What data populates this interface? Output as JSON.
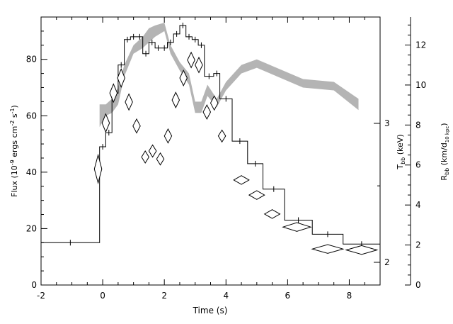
{
  "chart_data": {
    "type": "line",
    "xlabel": "Time (s)",
    "xlim": [
      -2,
      9
    ],
    "x_ticks": [
      "-2",
      "0",
      "2",
      "4",
      "6",
      "8"
    ],
    "left_axis": {
      "label": "Flux (10",
      "label_sup1": "-9",
      "label_mid": " ergs cm",
      "label_sup2": "-2",
      "label_mid2": " s",
      "label_sup3": "-1",
      "label_end": ")",
      "ylim": [
        0,
        95
      ],
      "ticks": [
        "0",
        "20",
        "40",
        "60",
        "80"
      ]
    },
    "temp_axis": {
      "label": "T",
      "label_sub": "bb",
      "label_end": " (keV)",
      "scale": "log",
      "ticks": [
        "2",
        "3"
      ]
    },
    "radius_axis": {
      "label": "R",
      "label_sub": "bb",
      "label_mid": " (km/d",
      "label_sub2": "10 kpc",
      "label_end": ")",
      "ylim": [
        0,
        13.4
      ],
      "ticks": [
        "0",
        "2",
        "4",
        "6",
        "8",
        "10",
        "12"
      ]
    },
    "flux_series": {
      "bins": [
        [
          -2.0,
          -0.1,
          15.0
        ],
        [
          -0.1,
          0.1,
          49.0
        ],
        [
          0.1,
          0.3,
          54.0
        ],
        [
          0.3,
          0.5,
          68.0
        ],
        [
          0.5,
          0.7,
          78.0
        ],
        [
          0.7,
          0.9,
          87.0
        ],
        [
          0.9,
          1.1,
          88.0
        ],
        [
          1.1,
          1.3,
          88.0
        ],
        [
          1.3,
          1.5,
          82.0
        ],
        [
          1.5,
          1.7,
          86.0
        ],
        [
          1.7,
          1.9,
          84.0
        ],
        [
          1.9,
          2.1,
          84.0
        ],
        [
          2.1,
          2.3,
          86.0
        ],
        [
          2.3,
          2.5,
          89.0
        ],
        [
          2.5,
          2.7,
          92.0
        ],
        [
          2.7,
          2.9,
          88.0
        ],
        [
          2.9,
          3.1,
          87.0
        ],
        [
          3.1,
          3.3,
          85.0
        ],
        [
          3.3,
          3.6,
          74.0
        ],
        [
          3.6,
          3.8,
          75.0
        ],
        [
          3.8,
          4.2,
          66.0
        ],
        [
          4.2,
          4.7,
          51.0
        ],
        [
          4.7,
          5.2,
          43.0
        ],
        [
          5.2,
          5.9,
          34.0
        ],
        [
          5.9,
          6.8,
          23.0
        ],
        [
          6.8,
          7.8,
          18.0
        ],
        [
          7.8,
          9.0,
          14.5
        ]
      ]
    },
    "temperature_band": {
      "x": [
        -0.1,
        0.1,
        0.3,
        0.5,
        0.7,
        1.0,
        1.3,
        1.5,
        1.7,
        2.0,
        2.2,
        2.5,
        2.8,
        3.0,
        3.2,
        3.4,
        3.7,
        4.0,
        4.5,
        5.0,
        6.5,
        7.5,
        8.3
      ],
      "upper": [
        64.0,
        64.0,
        66.0,
        70.0,
        78.0,
        85.0,
        88.0,
        91.0,
        92.0,
        93.0,
        85.0,
        79.0,
        75.0,
        65.0,
        65.0,
        71.0,
        66.0,
        72.0,
        78.0,
        80.0,
        73.0,
        72.0,
        66.0
      ],
      "lower": [
        56.0,
        60.0,
        61.0,
        64.0,
        74.0,
        82.0,
        84.0,
        86.0,
        88.0,
        90.0,
        82.0,
        76.0,
        71.0,
        61.0,
        61.0,
        67.0,
        63.0,
        69.0,
        75.0,
        77.0,
        70.0,
        69.0,
        62.0
      ]
    },
    "radius_points": [
      {
        "x": -0.15,
        "y": 5.8,
        "dx": 0.12,
        "dy": 0.7
      },
      {
        "x": 0.1,
        "y": 8.1,
        "dx": 0.12,
        "dy": 0.45
      },
      {
        "x": 0.35,
        "y": 9.6,
        "dx": 0.12,
        "dy": 0.45
      },
      {
        "x": 0.6,
        "y": 10.35,
        "dx": 0.12,
        "dy": 0.45
      },
      {
        "x": 0.85,
        "y": 9.15,
        "dx": 0.12,
        "dy": 0.4
      },
      {
        "x": 1.1,
        "y": 7.95,
        "dx": 0.12,
        "dy": 0.35
      },
      {
        "x": 1.38,
        "y": 6.4,
        "dx": 0.12,
        "dy": 0.3
      },
      {
        "x": 1.62,
        "y": 6.7,
        "dx": 0.12,
        "dy": 0.3
      },
      {
        "x": 1.87,
        "y": 6.3,
        "dx": 0.12,
        "dy": 0.3
      },
      {
        "x": 2.12,
        "y": 7.45,
        "dx": 0.12,
        "dy": 0.35
      },
      {
        "x": 2.37,
        "y": 9.25,
        "dx": 0.12,
        "dy": 0.38
      },
      {
        "x": 2.62,
        "y": 10.35,
        "dx": 0.12,
        "dy": 0.38
      },
      {
        "x": 2.87,
        "y": 11.25,
        "dx": 0.12,
        "dy": 0.38
      },
      {
        "x": 3.12,
        "y": 11.0,
        "dx": 0.12,
        "dy": 0.38
      },
      {
        "x": 3.38,
        "y": 8.65,
        "dx": 0.12,
        "dy": 0.35
      },
      {
        "x": 3.62,
        "y": 9.1,
        "dx": 0.12,
        "dy": 0.35
      },
      {
        "x": 3.87,
        "y": 7.45,
        "dx": 0.12,
        "dy": 0.3
      },
      {
        "x": 4.5,
        "y": 5.25,
        "dx": 0.25,
        "dy": 0.22
      },
      {
        "x": 5.0,
        "y": 4.5,
        "dx": 0.25,
        "dy": 0.22
      },
      {
        "x": 5.5,
        "y": 3.55,
        "dx": 0.25,
        "dy": 0.22
      },
      {
        "x": 6.3,
        "y": 2.9,
        "dx": 0.45,
        "dy": 0.22
      },
      {
        "x": 7.3,
        "y": 1.8,
        "dx": 0.5,
        "dy": 0.22
      },
      {
        "x": 8.4,
        "y": 1.75,
        "dx": 0.5,
        "dy": 0.22
      }
    ]
  }
}
